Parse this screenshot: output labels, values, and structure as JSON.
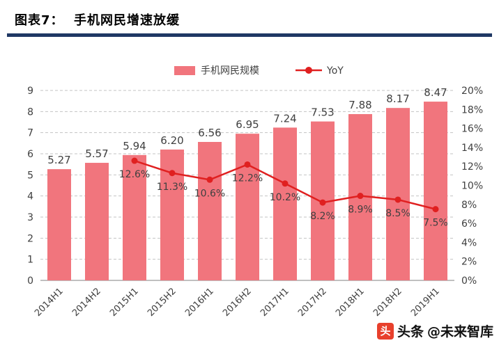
{
  "header": {
    "title": "图表7：  手机网民增速放缓"
  },
  "chart_data": {
    "type": "bar",
    "title": "手机网民增速放缓",
    "categories": [
      "2014H1",
      "2014H2",
      "2015H1",
      "2015H2",
      "2016H1",
      "2016H2",
      "2017H1",
      "2017H2",
      "2018H1",
      "2018H2",
      "2019H1"
    ],
    "series": [
      {
        "name": "手机网民规模",
        "type": "bar",
        "axis": "left",
        "color": "#F1757D",
        "values": [
          5.27,
          5.57,
          5.94,
          6.2,
          6.56,
          6.95,
          7.24,
          7.53,
          7.88,
          8.17,
          8.47
        ]
      },
      {
        "name": "YoY",
        "type": "line",
        "axis": "right",
        "color": "#E02020",
        "start_index": 2,
        "values": [
          12.6,
          11.3,
          10.6,
          12.2,
          10.2,
          8.2,
          8.9,
          8.5,
          7.5
        ],
        "suffix": "%"
      }
    ],
    "left_axis": {
      "min": 0,
      "max": 9,
      "step": 1
    },
    "right_axis": {
      "min": 0,
      "max": 20,
      "step": 2,
      "suffix": "%"
    },
    "legend_position": "top",
    "grid": "dashed-horizontal"
  },
  "watermark": {
    "logo_char": "头",
    "brand": "头条",
    "handle": "@未来智库"
  }
}
